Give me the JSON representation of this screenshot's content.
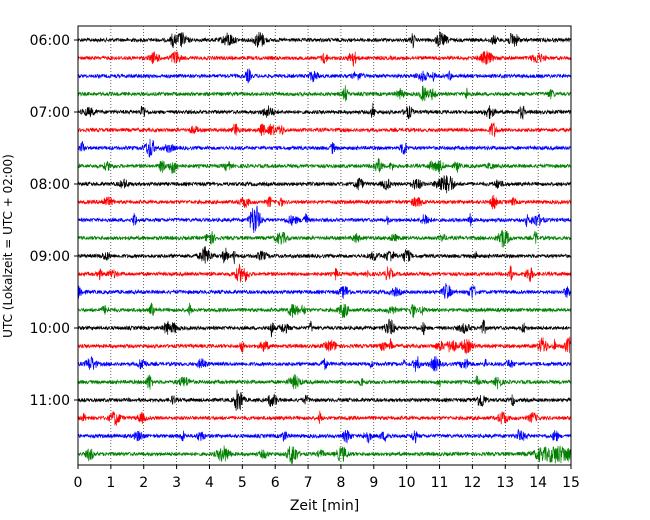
{
  "chart_data": {
    "type": "line",
    "title": "",
    "xlabel": "Zeit  [min]",
    "ylabel": "UTC (Lokalzeit = UTC + 02:00)",
    "xlim": [
      0,
      15
    ],
    "x_ticks": [
      0,
      1,
      2,
      3,
      4,
      5,
      6,
      7,
      8,
      9,
      10,
      11,
      12,
      13,
      14,
      15
    ],
    "x_tick_labels": [
      "0",
      "1",
      "2",
      "3",
      "4",
      "5",
      "6",
      "7",
      "8",
      "9",
      "10",
      "11",
      "12",
      "13",
      "14",
      "15"
    ],
    "y_tick_labels": [
      "06:00",
      "07:00",
      "08:00",
      "09:00",
      "10:00",
      "11:00"
    ],
    "trace_start_minutes": [
      0,
      15,
      30,
      45,
      60,
      75,
      90,
      105,
      120,
      135,
      150,
      165,
      180,
      195,
      210,
      225,
      240,
      255,
      270,
      285,
      300,
      315,
      330,
      345
    ],
    "grid": "vertical dotted lines at each minute",
    "legend": "none",
    "colors": [
      "#000000",
      "#ff0000",
      "#0000ff",
      "#008000"
    ],
    "series_values": "continuous seismogram traces (amplitude not labeled)"
  }
}
